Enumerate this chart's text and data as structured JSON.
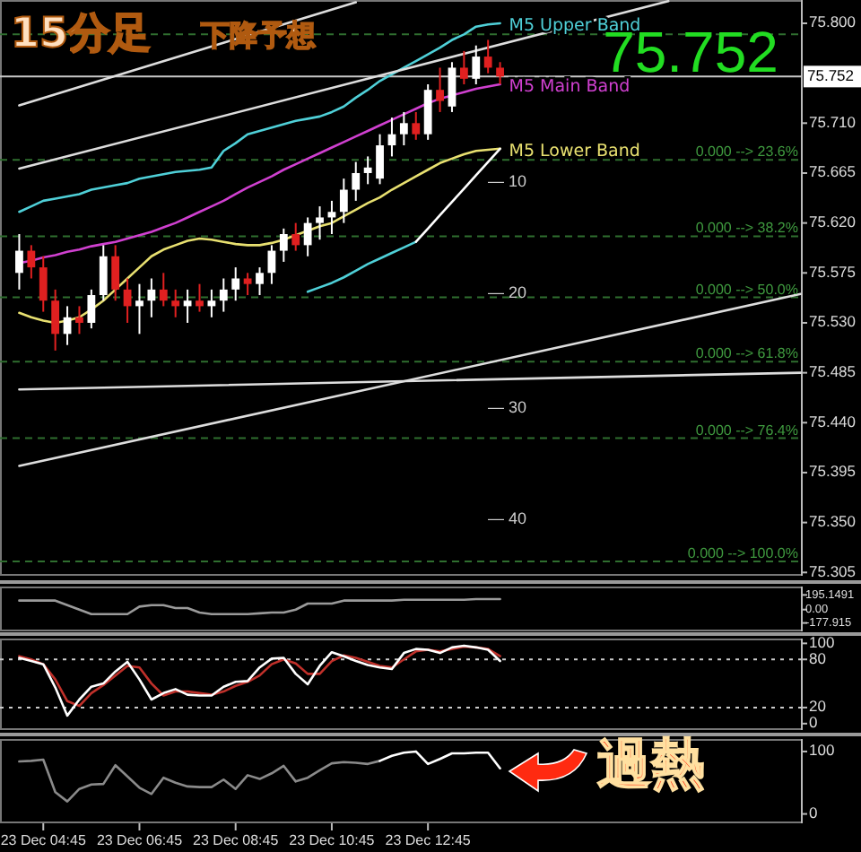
{
  "chart_data": [
    {
      "type": "candlestick",
      "title": "15分足",
      "subtitle": "下降予想",
      "categories": [
        null,
        null,
        null,
        null,
        null,
        null,
        null,
        null,
        null,
        null,
        null,
        null,
        null,
        null,
        null,
        null,
        null,
        null,
        null,
        null,
        null,
        null,
        null,
        null,
        null,
        null,
        null,
        null,
        null,
        null,
        null,
        null,
        null,
        null,
        null,
        null,
        null,
        null,
        null,
        null,
        null,
        null,
        null,
        null,
        null,
        null,
        null,
        null,
        null,
        null,
        null,
        null,
        null,
        null,
        null,
        null,
        null,
        null,
        null,
        null,
        null,
        null,
        null,
        null,
        null,
        null
      ],
      "ohlc": [
        [
          75.575,
          75.61,
          75.56,
          75.595
        ],
        [
          75.595,
          75.6,
          75.57,
          75.58
        ],
        [
          75.58,
          75.59,
          75.54,
          75.55
        ],
        [
          75.55,
          75.56,
          75.505,
          75.52
        ],
        [
          75.52,
          75.545,
          75.51,
          75.535
        ],
        [
          75.535,
          75.545,
          75.52,
          75.53
        ],
        [
          75.53,
          75.56,
          75.525,
          75.555
        ],
        [
          75.555,
          75.6,
          75.55,
          75.59
        ],
        [
          75.59,
          75.6,
          75.55,
          75.56
        ],
        [
          75.56,
          75.57,
          75.53,
          75.545
        ],
        [
          75.545,
          75.565,
          75.52,
          75.55
        ],
        [
          75.55,
          75.57,
          75.535,
          75.56
        ],
        [
          75.56,
          75.575,
          75.545,
          75.55
        ],
        [
          75.55,
          75.56,
          75.535,
          75.545
        ],
        [
          75.545,
          75.56,
          75.53,
          75.55
        ],
        [
          75.55,
          75.565,
          75.54,
          75.545
        ],
        [
          75.545,
          75.56,
          75.535,
          75.55
        ],
        [
          75.55,
          75.57,
          75.54,
          75.56
        ],
        [
          75.56,
          75.58,
          75.55,
          75.57
        ],
        [
          75.57,
          75.575,
          75.555,
          75.565
        ],
        [
          75.565,
          75.58,
          75.555,
          75.575
        ],
        [
          75.575,
          75.6,
          75.565,
          75.595
        ],
        [
          75.595,
          75.615,
          75.585,
          75.61
        ],
        [
          75.61,
          75.62,
          75.595,
          75.6
        ],
        [
          75.6,
          75.625,
          75.59,
          75.62
        ],
        [
          75.62,
          75.635,
          75.605,
          75.625
        ],
        [
          75.625,
          75.64,
          75.61,
          75.63
        ],
        [
          75.63,
          75.66,
          75.62,
          75.65
        ],
        [
          75.65,
          75.675,
          75.64,
          75.665
        ],
        [
          75.665,
          75.68,
          75.655,
          75.67
        ],
        [
          75.66,
          75.7,
          75.655,
          75.69
        ],
        [
          75.69,
          75.715,
          75.68,
          75.7
        ],
        [
          75.7,
          75.72,
          75.69,
          75.71
        ],
        [
          75.71,
          75.72,
          75.695,
          75.7
        ],
        [
          75.7,
          75.745,
          75.695,
          75.74
        ],
        [
          75.74,
          75.76,
          75.72,
          75.73
        ],
        [
          75.725,
          75.765,
          75.72,
          75.76
        ],
        [
          75.76,
          75.775,
          75.745,
          75.75
        ],
        [
          75.75,
          75.78,
          75.745,
          75.77
        ],
        [
          75.77,
          75.785,
          75.755,
          75.76
        ],
        [
          75.76,
          75.765,
          75.745,
          75.752
        ],
        null,
        null,
        null,
        null,
        null,
        null,
        null,
        null,
        null,
        null,
        null,
        null,
        null,
        null,
        null,
        null,
        null,
        null,
        null,
        null,
        null,
        null,
        null,
        null,
        null
      ],
      "colors": [
        "#ffffff",
        "#e02020",
        "#e02020",
        "#e02020",
        "#ffffff",
        "#e02020",
        "#ffffff",
        "#ffffff",
        "#e02020",
        "#e02020",
        "#ffffff",
        "#ffffff",
        "#e02020",
        "#e02020",
        "#ffffff",
        "#e02020",
        "#ffffff",
        "#ffffff",
        "#ffffff",
        "#e02020",
        "#ffffff",
        "#ffffff",
        "#ffffff",
        "#e02020",
        "#ffffff",
        "#ffffff",
        "#ffffff",
        "#ffffff",
        "#ffffff",
        "#ffffff",
        "#ffffff",
        "#ffffff",
        "#ffffff",
        "#e02020",
        "#ffffff",
        "#e02020",
        "#ffffff",
        "#e02020",
        "#ffffff",
        "#e02020",
        "#e02020",
        null,
        null,
        null,
        null,
        null,
        null,
        null,
        null,
        null,
        null,
        null,
        null,
        null,
        null,
        null,
        null,
        null,
        null,
        null,
        null,
        null,
        null,
        null,
        null,
        null
      ],
      "series": [
        {
          "type": "line",
          "name": "M5 Upper Band",
          "color": "#4fd0d8",
          "values": [
            75.63,
            75.635,
            75.64,
            75.642,
            75.644,
            75.646,
            75.65,
            75.652,
            75.654,
            75.656,
            75.66,
            75.662,
            75.664,
            75.666,
            75.667,
            75.668,
            75.67,
            75.685,
            75.692,
            75.7,
            75.703,
            75.706,
            75.709,
            75.712,
            75.714,
            75.716,
            75.72,
            75.725,
            75.733,
            75.74,
            75.748,
            75.754,
            75.76,
            75.766,
            75.772,
            75.778,
            75.785,
            75.79,
            75.797,
            75.799,
            75.8,
            null,
            null,
            null,
            null,
            null,
            null,
            null,
            null,
            null,
            null,
            null,
            null,
            null,
            null,
            null,
            null,
            null,
            null,
            null,
            null,
            null,
            null,
            null,
            null,
            null
          ]
        },
        {
          "type": "line",
          "name": "M5 Main Band",
          "color": "#d040d0",
          "values": [
            75.584,
            75.586,
            75.589,
            75.591,
            75.594,
            75.596,
            75.599,
            75.601,
            75.603,
            75.606,
            75.609,
            75.612,
            75.616,
            75.62,
            75.625,
            75.63,
            75.635,
            75.64,
            75.646,
            75.652,
            75.657,
            75.662,
            75.668,
            75.673,
            75.678,
            75.683,
            75.688,
            75.693,
            75.698,
            75.703,
            75.708,
            75.713,
            75.718,
            75.723,
            75.728,
            75.732,
            75.735,
            75.738,
            75.741,
            75.743,
            75.745,
            null,
            null,
            null,
            null,
            null,
            null,
            null,
            null,
            null,
            null,
            null,
            null,
            null,
            null,
            null,
            null,
            null,
            null,
            null,
            null,
            null,
            null,
            null,
            null,
            null
          ]
        },
        {
          "type": "line",
          "name": "M5 Lower Band",
          "color": "#e8e070",
          "values": [
            75.539,
            75.535,
            75.532,
            75.53,
            75.532,
            75.535,
            75.542,
            75.55,
            75.56,
            75.57,
            75.58,
            75.59,
            75.596,
            75.6,
            75.604,
            75.606,
            75.605,
            75.603,
            75.601,
            75.6,
            75.6,
            75.602,
            75.605,
            75.609,
            75.613,
            75.617,
            75.62,
            75.626,
            75.632,
            75.638,
            75.643,
            75.65,
            75.656,
            75.662,
            75.668,
            75.674,
            75.678,
            75.682,
            75.685,
            75.686,
            75.687,
            null,
            null,
            null,
            null,
            null,
            null,
            null,
            null,
            null,
            null,
            null,
            null,
            null,
            null,
            null,
            null,
            null,
            null,
            null,
            null,
            null,
            null,
            null,
            null,
            null
          ]
        },
        {
          "type": "line",
          "color": "#4fd0d8",
          "values": [
            null,
            null,
            null,
            null,
            null,
            null,
            null,
            null,
            null,
            null,
            null,
            null,
            null,
            null,
            null,
            null,
            null,
            null,
            null,
            null,
            null,
            null,
            null,
            null,
            75.558,
            75.562,
            75.566,
            75.571,
            75.577,
            75.583,
            75.588,
            75.593,
            75.598,
            75.603,
            null,
            null,
            null,
            null,
            null,
            null,
            null,
            null,
            null,
            null,
            null,
            null,
            null,
            null,
            null,
            null,
            null,
            null,
            null,
            null,
            null,
            null,
            null,
            null,
            null,
            null,
            null,
            null,
            null,
            null,
            null,
            null
          ]
        },
        {
          "type": "line",
          "color": "#ffffff",
          "values": [
            null,
            null,
            null,
            null,
            null,
            null,
            null,
            null,
            null,
            null,
            null,
            null,
            null,
            null,
            null,
            null,
            null,
            null,
            null,
            null,
            null,
            null,
            null,
            null,
            null,
            null,
            null,
            null,
            null,
            null,
            null,
            null,
            null,
            75.603,
            75.615,
            75.627,
            75.639,
            75.651,
            75.663,
            75.675,
            75.687,
            null,
            null,
            null,
            null,
            null,
            null,
            null,
            null,
            null,
            null,
            null,
            null,
            null,
            null,
            null,
            null,
            null,
            null,
            null,
            null,
            null,
            null,
            null,
            null,
            null
          ]
        },
        {
          "type": "line",
          "color": "#dddddd",
          "values": [
            75.726,
            null,
            null,
            null,
            null,
            null,
            null,
            null,
            null,
            null,
            null,
            null,
            null,
            null,
            null,
            null,
            null,
            null,
            null,
            null,
            null,
            null,
            null,
            null,
            null,
            null,
            null,
            null,
            75.819,
            null,
            null,
            null,
            null,
            null,
            null,
            null,
            null,
            null,
            null,
            null,
            null,
            null,
            null,
            null,
            null,
            null,
            null,
            null,
            null,
            null,
            null,
            null,
            null,
            null,
            null,
            null,
            null,
            null,
            null,
            null,
            null,
            null,
            null,
            null,
            null,
            null
          ]
        },
        {
          "type": "line",
          "color": "#dddddd",
          "values": [
            75.669,
            null,
            null,
            null,
            null,
            null,
            null,
            null,
            null,
            null,
            null,
            null,
            null,
            null,
            null,
            null,
            null,
            null,
            null,
            null,
            null,
            null,
            null,
            null,
            null,
            null,
            null,
            null,
            null,
            null,
            null,
            null,
            null,
            null,
            null,
            null,
            null,
            null,
            null,
            null,
            null,
            null,
            null,
            null,
            null,
            null,
            null,
            null,
            null,
            null,
            null,
            null,
            null,
            null,
            75.82,
            null,
            null,
            null,
            null,
            null,
            null,
            null,
            null,
            null,
            null,
            null
          ]
        },
        {
          "type": "line",
          "color": "#dddddd",
          "values": [
            75.401,
            null,
            null,
            null,
            null,
            null,
            null,
            null,
            null,
            null,
            null,
            null,
            null,
            null,
            null,
            null,
            null,
            null,
            null,
            null,
            null,
            null,
            null,
            null,
            null,
            null,
            null,
            null,
            null,
            null,
            null,
            null,
            null,
            null,
            null,
            null,
            null,
            null,
            null,
            null,
            null,
            null,
            null,
            null,
            null,
            null,
            null,
            null,
            null,
            null,
            null,
            null,
            null,
            null,
            null,
            null,
            null,
            null,
            null,
            null,
            null,
            null,
            null,
            null,
            null,
            75.556
          ]
        },
        {
          "type": "line",
          "color": "#dddddd",
          "values": [
            75.47,
            null,
            null,
            null,
            null,
            null,
            null,
            null,
            null,
            null,
            null,
            null,
            null,
            null,
            null,
            null,
            null,
            null,
            null,
            null,
            null,
            null,
            null,
            null,
            null,
            null,
            null,
            null,
            null,
            null,
            null,
            null,
            null,
            null,
            null,
            null,
            null,
            null,
            null,
            null,
            null,
            null,
            null,
            null,
            null,
            null,
            null,
            null,
            null,
            null,
            null,
            null,
            null,
            null,
            null,
            null,
            null,
            null,
            null,
            null,
            null,
            null,
            null,
            null,
            null,
            75.485
          ]
        }
      ],
      "ylim": [
        75.302,
        75.821
      ],
      "yticks": [
        {
          "value": 75.8,
          "label": "75.800"
        },
        {
          "value": 75.71,
          "label": "75.710"
        },
        {
          "value": 75.665,
          "label": "75.665"
        },
        {
          "value": 75.62,
          "label": "75.620"
        },
        {
          "value": 75.575,
          "label": "75.575"
        },
        {
          "value": 75.53,
          "label": "75.530"
        },
        {
          "value": 75.485,
          "label": "75.485"
        },
        {
          "value": 75.44,
          "label": "75.440"
        },
        {
          "value": 75.395,
          "label": "75.395"
        },
        {
          "value": 75.35,
          "label": "75.350"
        },
        {
          "value": 75.305,
          "label": "75.305"
        }
      ],
      "ref_lines": [
        {
          "axis": "y",
          "value": 75.752,
          "label": "75.752",
          "color": "#c8c8c8",
          "line_style": "solid"
        },
        {
          "axis": "y",
          "value": 75.79,
          "color": "#2f6e2f",
          "line_style": "dashed"
        },
        {
          "axis": "y",
          "value": 75.677,
          "color": "#2f6e2f",
          "line_style": "dashed"
        },
        {
          "axis": "y",
          "value": 75.608,
          "color": "#2f6e2f",
          "line_style": "dashed"
        },
        {
          "axis": "y",
          "value": 75.553,
          "color": "#2f6e2f",
          "line_style": "dashed"
        },
        {
          "axis": "y",
          "value": 75.495,
          "color": "#2f6e2f",
          "line_style": "dashed"
        },
        {
          "axis": "y",
          "value": 75.426,
          "color": "#2f6e2f",
          "line_style": "dashed"
        },
        {
          "axis": "y",
          "value": 75.315,
          "color": "#2f6e2f",
          "line_style": "dashed"
        }
      ],
      "annotations": [
        "75.752",
        "— 10",
        "— 20",
        "— 30",
        "— 40",
        {
          "text": "0.000 --> 23.6%",
          "y": 75.677
        },
        {
          "text": "0.000 --> 38.2%",
          "y": 75.608
        },
        {
          "text": "0.000 --> 50.0%",
          "y": 75.553
        },
        {
          "text": "0.000 --> 61.8%",
          "y": 75.495
        },
        {
          "text": "0.000 --> 76.4%",
          "y": 75.426
        },
        {
          "text": "0.000 --> 100.0%",
          "y": 75.315
        }
      ]
    },
    {
      "type": "line",
      "categories": [
        null,
        null,
        null,
        null,
        null,
        null,
        null,
        null,
        null,
        null,
        null,
        null,
        null,
        null,
        null,
        null,
        null,
        null,
        null,
        null,
        null,
        null,
        null,
        null,
        null,
        null,
        null,
        null,
        null,
        null,
        null,
        null,
        null,
        null,
        null,
        null,
        null,
        null,
        null,
        null,
        null,
        null,
        null,
        null,
        null,
        null,
        null,
        null,
        null,
        null,
        null,
        null,
        null,
        null,
        null,
        null,
        null,
        null,
        null,
        null,
        null,
        null,
        null,
        null,
        null,
        null
      ],
      "series": [
        {
          "color": "#9a9a9a",
          "values": [
            120,
            120,
            120,
            120,
            60,
            0,
            -60,
            -60,
            -60,
            -60,
            40,
            60,
            60,
            20,
            20,
            -40,
            -60,
            -60,
            -60,
            -60,
            -50,
            -40,
            -40,
            0,
            80,
            80,
            80,
            120,
            120,
            120,
            120,
            120,
            130,
            130,
            130,
            130,
            130,
            130,
            140,
            140,
            140,
            null,
            null,
            null,
            null,
            null,
            null,
            null,
            null,
            null,
            null,
            null,
            null,
            null,
            null,
            null,
            null,
            null,
            null,
            null,
            null,
            null,
            null,
            null,
            null,
            null
          ]
        }
      ],
      "ylim": [
        -290,
        307
      ],
      "yticks": [
        {
          "value": 195.1491,
          "label": "195.1491"
        },
        {
          "value": 0,
          "label": "0.00"
        },
        {
          "value": -177.915,
          "label": "-177.915"
        }
      ]
    },
    {
      "type": "line",
      "categories": [
        null,
        null,
        null,
        null,
        null,
        null,
        null,
        null,
        null,
        null,
        null,
        null,
        null,
        null,
        null,
        null,
        null,
        null,
        null,
        null,
        null,
        null,
        null,
        null,
        null,
        null,
        null,
        null,
        null,
        null,
        null,
        null,
        null,
        null,
        null,
        null,
        null,
        null,
        null,
        null,
        null,
        null,
        null,
        null,
        null,
        null,
        null,
        null,
        null,
        null,
        null,
        null,
        null,
        null,
        null,
        null,
        null,
        null,
        null,
        null,
        null,
        null,
        null,
        null,
        null,
        null
      ],
      "series": [
        {
          "color": "#c0302a",
          "values": [
            84,
            80,
            74,
            55,
            28,
            22,
            38,
            48,
            60,
            72,
            70,
            50,
            35,
            40,
            40,
            38,
            36,
            40,
            47,
            52,
            60,
            74,
            80,
            75,
            62,
            62,
            78,
            85,
            82,
            77,
            72,
            70,
            80,
            90,
            92,
            90,
            93,
            96,
            95,
            93,
            84,
            null,
            null,
            null,
            null,
            null,
            null,
            null,
            null,
            null,
            null,
            null,
            null,
            null,
            null,
            null,
            null,
            null,
            null,
            null,
            null,
            null,
            null,
            null,
            null,
            null
          ]
        },
        {
          "color": "#ffffff",
          "values": [
            82,
            78,
            74,
            45,
            10,
            30,
            46,
            50,
            65,
            77,
            55,
            30,
            38,
            43,
            36,
            35,
            35,
            46,
            52,
            53,
            70,
            81,
            82,
            62,
            49,
            72,
            89,
            84,
            78,
            73,
            70,
            68,
            88,
            93,
            92,
            88,
            95,
            97,
            95,
            92,
            78,
            null,
            null,
            null,
            null,
            null,
            null,
            null,
            null,
            null,
            null,
            null,
            null,
            null,
            null,
            null,
            null,
            null,
            null,
            null,
            null,
            null,
            null,
            null,
            null,
            null
          ]
        }
      ],
      "ylim": [
        -8,
        106
      ],
      "yticks": [
        0,
        20,
        80,
        100
      ],
      "ref_lines": [
        {
          "axis": "y",
          "value": 80,
          "color": "#cccccc",
          "line_style": "dotted"
        },
        {
          "axis": "y",
          "value": 20,
          "color": "#cccccc",
          "line_style": "dotted"
        }
      ]
    },
    {
      "type": "line",
      "categories": [
        null,
        null,
        "23 Dec 04:45",
        null,
        null,
        null,
        null,
        null,
        null,
        null,
        "23 Dec 06:45",
        null,
        null,
        null,
        null,
        null,
        null,
        null,
        "23 Dec 08:45",
        null,
        null,
        null,
        null,
        null,
        null,
        null,
        "23 Dec 10:45",
        null,
        null,
        null,
        null,
        null,
        null,
        null,
        "23 Dec 12:45",
        null,
        null,
        null,
        null,
        null,
        null,
        null,
        null,
        null,
        null,
        null,
        null,
        null,
        null,
        null,
        null,
        null,
        null,
        null,
        null,
        null,
        null,
        null,
        null,
        null,
        null,
        null,
        null,
        null,
        null,
        null
      ],
      "series": [
        {
          "color": "#8a8a8a",
          "values": [
            84,
            85,
            87,
            35,
            20,
            40,
            47,
            48,
            78,
            60,
            42,
            32,
            58,
            50,
            44,
            43,
            43,
            55,
            40,
            62,
            56,
            65,
            77,
            52,
            58,
            70,
            81,
            83,
            82,
            80,
            85,
            null,
            null,
            null,
            null,
            null,
            null,
            null,
            null,
            null,
            null,
            null,
            null,
            null,
            null,
            null,
            null,
            null,
            null,
            null,
            null,
            null,
            null,
            null,
            null,
            null,
            null,
            null,
            null,
            null,
            null,
            null,
            null,
            null,
            null,
            null
          ]
        },
        {
          "color": "#ffffff",
          "values": [
            null,
            null,
            null,
            null,
            null,
            null,
            null,
            null,
            null,
            null,
            null,
            null,
            null,
            null,
            null,
            null,
            null,
            null,
            null,
            null,
            null,
            null,
            null,
            null,
            null,
            null,
            null,
            null,
            null,
            null,
            85,
            93,
            98,
            100,
            80,
            88,
            97,
            97,
            98,
            98,
            73,
            null,
            null,
            null,
            null,
            null,
            null,
            null,
            null,
            null,
            null,
            null,
            null,
            null,
            null,
            null,
            null,
            null,
            null,
            null,
            null,
            null,
            null,
            null,
            null,
            null
          ]
        }
      ],
      "ylim": [
        -15,
        120
      ],
      "yticks": [
        0,
        100
      ],
      "annotations": [
        "過熱"
      ]
    }
  ]
}
